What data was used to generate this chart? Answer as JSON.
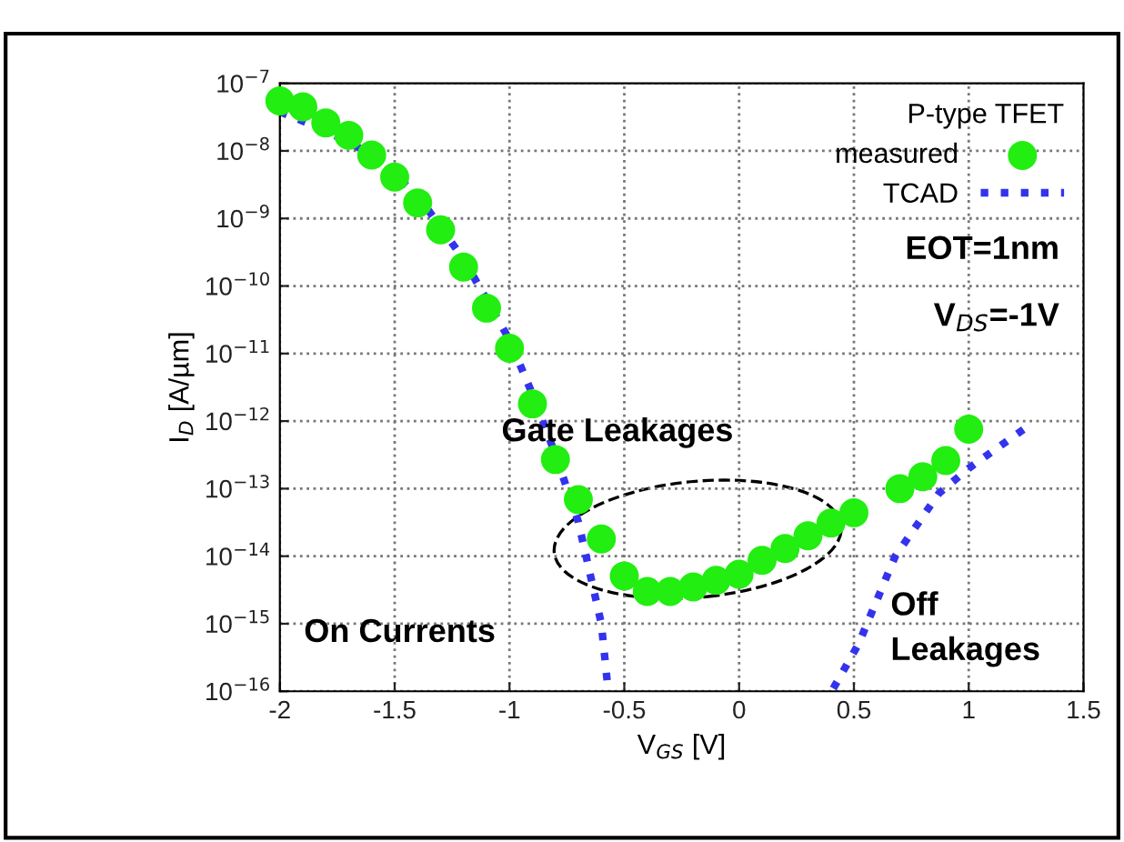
{
  "chart_data": {
    "type": "line",
    "xlabel": "V$_{GS}$ [V]",
    "ylabel": "I$_{D}$ [A/µm]",
    "legend_title": "P-type TFET",
    "xlim": [
      -2,
      1.5
    ],
    "xticks": [
      -2,
      -1.5,
      -1,
      -0.5,
      0,
      0.5,
      1,
      1.5
    ],
    "ylim": [
      1e-16,
      1e-07
    ],
    "log": true,
    "yticks": [
      {
        "value": 1e-16,
        "label": "10$^{−16}$"
      },
      {
        "value": 1e-15,
        "label": "10$^{−15}$"
      },
      {
        "value": 1e-14,
        "label": "10$^{−14}$"
      },
      {
        "value": 1e-13,
        "label": "10$^{−13}$"
      },
      {
        "value": 1e-12,
        "label": "10$^{−12}$"
      },
      {
        "value": 1e-11,
        "label": "10$^{−11}$"
      },
      {
        "value": 1e-10,
        "label": "10$^{−10}$"
      },
      {
        "value": 1e-09,
        "label": "10$^{−9}$"
      },
      {
        "value": 1e-08,
        "label": "10$^{−8}$"
      },
      {
        "value": 1e-07,
        "label": "10$^{−7}$"
      }
    ],
    "grid": true,
    "legend": "top right",
    "series": [
      {
        "name": "measured",
        "type": "scatter",
        "marker": "circle",
        "color": "#22ee11",
        "x": [
          -2.0,
          -1.9,
          -1.8,
          -1.7,
          -1.6,
          -1.5,
          -1.4,
          -1.3,
          -1.2,
          -1.1,
          -1.0,
          -0.9,
          -0.8,
          -0.7,
          -0.6,
          -0.5,
          -0.4,
          -0.3,
          -0.2,
          -0.1,
          0.0,
          0.1,
          0.2,
          0.3,
          0.4,
          0.5,
          0.7,
          0.8,
          0.9,
          1.0
        ],
        "values": [
          5.5e-08,
          4.5e-08,
          2.6e-08,
          1.7e-08,
          8.7e-09,
          4.1e-09,
          1.7e-09,
          6.8e-10,
          1.9e-10,
          4.7e-11,
          1.2e-11,
          1.8e-12,
          2.7e-13,
          6.9e-14,
          1.8e-14,
          5.1e-15,
          3e-15,
          3e-15,
          3.5e-15,
          4.4e-15,
          5.4e-15,
          8.7e-15,
          1.3e-14,
          2e-14,
          3.1e-14,
          4.4e-14,
          1e-13,
          1.5e-13,
          2.6e-13,
          7.6e-13
        ]
      },
      {
        "name": "TCAD",
        "line_style": "dotted",
        "color": "#3333ee",
        "x": [
          -2.0,
          -1.8,
          -1.6,
          -1.4,
          -1.2,
          -1.0,
          -0.9,
          -0.8,
          -0.7,
          -0.6,
          -0.57
        ],
        "values": [
          3.8e-08,
          2e-08,
          8.9e-09,
          2.2e-09,
          2.5e-10,
          1.6e-11,
          2.5e-12,
          3.2e-13,
          3.2e-14,
          1e-15,
          1e-16
        ]
      },
      {
        "line_style": "dotted",
        "color": "#3333ee",
        "x": [
          0.41,
          0.52,
          0.68,
          0.87,
          1.0,
          1.26
        ],
        "values": [
          1.1e-16,
          5e-16,
          1e-14,
          8.5e-14,
          2e-13,
          8.5e-13
        ]
      }
    ],
    "annotations": [
      "EOT=1nm",
      "V$_{DS}$=-1V",
      "Gate Leakages",
      "On Currents",
      "Off\nLeakages"
    ]
  }
}
